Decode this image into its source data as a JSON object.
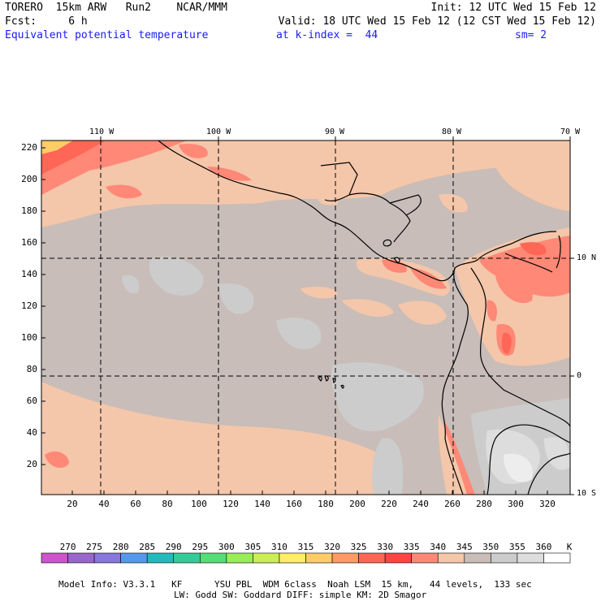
{
  "header": {
    "line1_left": "TORERO  15km ARW   Run2    NCAR/MMM",
    "line1_right": "Init: 12 UTC Wed 15 Feb 12",
    "line2_left": "Fcst:     6 h",
    "line2_right": "Valid: 18 UTC Wed 15 Feb 12 (12 CST Wed 15 Feb 12)",
    "field": "Equivalent potential temperature",
    "level": "at k-index =  44",
    "smooth": "sm= 2"
  },
  "map": {
    "lon_labels": [
      "110 W",
      "100 W",
      "90 W",
      "80 W",
      "70 W"
    ],
    "lat_labels": [
      "10 N",
      "0",
      "10 S"
    ],
    "x_ticks": [
      "20",
      "40",
      "60",
      "80",
      "100",
      "120",
      "140",
      "160",
      "180",
      "200",
      "220",
      "240",
      "260",
      "280",
      "300",
      "320"
    ],
    "y_ticks": [
      "220",
      "200",
      "180",
      "160",
      "140",
      "120",
      "100",
      "80",
      "60",
      "40",
      "20"
    ]
  },
  "colorbar": {
    "labels": [
      "270",
      "275",
      "280",
      "285",
      "290",
      "295",
      "300",
      "305",
      "310",
      "315",
      "320",
      "325",
      "330",
      "335",
      "340",
      "345",
      "350",
      "355",
      "360"
    ],
    "unit": "K",
    "colors": [
      "#cc55cc",
      "#9966cc",
      "#8877dd",
      "#5599ee",
      "#22bbbb",
      "#33cc99",
      "#55dd77",
      "#99ee55",
      "#ccee55",
      "#ffee66",
      "#ffcc66",
      "#ff9966",
      "#ff6655",
      "#ff4444",
      "#ff8877",
      "#f4c6aa",
      "#c8bdb8",
      "#cccccc",
      "#dddddd",
      "#ffffff"
    ]
  },
  "footer": {
    "line1": "Model Info: V3.3.1   KF      YSU PBL  WDM 6class  Noah LSM  15 km,   44 levels,  133 sec",
    "line2": "LW: Godd SW: Goddard DIFF: simple KM: 2D Smagor"
  }
}
